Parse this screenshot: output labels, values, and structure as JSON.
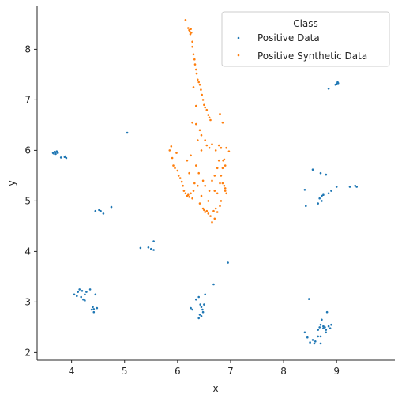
{
  "chart_data": {
    "type": "scatter",
    "title": "",
    "xlabel": "x",
    "ylabel": "y",
    "xlim": [
      3.35,
      10.1
    ],
    "ylim": [
      1.85,
      8.85
    ],
    "xticks": [
      4,
      5,
      6,
      7,
      8,
      9
    ],
    "yticks": [
      2,
      3,
      4,
      5,
      6,
      7,
      8
    ],
    "grid": false,
    "legend": {
      "title": "Class",
      "placement": "top-right"
    },
    "series": [
      {
        "name": "Positive Data",
        "color": "#1f77b4",
        "points": [
          [
            3.65,
            5.95
          ],
          [
            3.68,
            5.97
          ],
          [
            3.7,
            5.96
          ],
          [
            3.72,
            5.98
          ],
          [
            3.66,
            5.94
          ],
          [
            3.74,
            5.95
          ],
          [
            3.7,
            5.93
          ],
          [
            3.8,
            5.86
          ],
          [
            3.87,
            5.87
          ],
          [
            3.9,
            5.85
          ],
          [
            3.88,
            5.88
          ],
          [
            5.05,
            6.35
          ],
          [
            4.45,
            4.8
          ],
          [
            4.52,
            4.82
          ],
          [
            4.55,
            4.8
          ],
          [
            4.6,
            4.75
          ],
          [
            4.75,
            4.88
          ],
          [
            5.3,
            4.07
          ],
          [
            5.45,
            4.08
          ],
          [
            5.5,
            4.05
          ],
          [
            5.55,
            4.03
          ],
          [
            5.55,
            4.2
          ],
          [
            4.05,
            3.15
          ],
          [
            4.1,
            3.12
          ],
          [
            4.12,
            3.2
          ],
          [
            4.15,
            3.25
          ],
          [
            4.18,
            3.1
          ],
          [
            4.2,
            3.22
          ],
          [
            4.22,
            3.05
          ],
          [
            4.25,
            3.15
          ],
          [
            4.25,
            3.03
          ],
          [
            4.28,
            3.2
          ],
          [
            4.35,
            3.25
          ],
          [
            4.38,
            2.85
          ],
          [
            4.4,
            2.9
          ],
          [
            4.42,
            2.8
          ],
          [
            4.45,
            3.15
          ],
          [
            4.48,
            2.88
          ],
          [
            4.42,
            2.86
          ],
          [
            6.25,
            2.88
          ],
          [
            6.28,
            2.85
          ],
          [
            6.35,
            3.05
          ],
          [
            6.4,
            2.68
          ],
          [
            6.42,
            2.75
          ],
          [
            6.45,
            2.9
          ],
          [
            6.45,
            2.72
          ],
          [
            6.48,
            2.8
          ],
          [
            6.5,
            2.95
          ],
          [
            6.52,
            3.15
          ],
          [
            6.43,
            2.95
          ],
          [
            6.47,
            2.85
          ],
          [
            6.4,
            3.1
          ],
          [
            6.68,
            3.35
          ],
          [
            6.95,
            3.78
          ],
          [
            8.4,
            5.22
          ],
          [
            8.42,
            4.9
          ],
          [
            8.55,
            5.62
          ],
          [
            8.65,
            4.95
          ],
          [
            8.68,
            5.05
          ],
          [
            8.7,
            5.55
          ],
          [
            8.72,
            5.0
          ],
          [
            8.72,
            5.1
          ],
          [
            8.75,
            5.12
          ],
          [
            8.8,
            5.52
          ],
          [
            8.85,
            5.15
          ],
          [
            8.9,
            5.2
          ],
          [
            9.0,
            5.28
          ],
          [
            9.25,
            5.28
          ],
          [
            9.35,
            5.3
          ],
          [
            9.38,
            5.28
          ],
          [
            8.85,
            7.22
          ],
          [
            8.98,
            7.3
          ],
          [
            9.0,
            7.32
          ],
          [
            9.02,
            7.35
          ],
          [
            9.03,
            7.33
          ],
          [
            8.4,
            2.4
          ],
          [
            8.45,
            2.3
          ],
          [
            8.48,
            3.06
          ],
          [
            8.5,
            2.2
          ],
          [
            8.55,
            2.25
          ],
          [
            8.58,
            2.18
          ],
          [
            8.6,
            2.22
          ],
          [
            8.65,
            2.45
          ],
          [
            8.65,
            2.32
          ],
          [
            8.68,
            2.5
          ],
          [
            8.7,
            2.55
          ],
          [
            8.7,
            2.18
          ],
          [
            8.72,
            2.65
          ],
          [
            8.75,
            2.48
          ],
          [
            8.78,
            2.5
          ],
          [
            8.8,
            2.45
          ],
          [
            8.8,
            2.4
          ],
          [
            8.82,
            2.8
          ],
          [
            8.85,
            2.52
          ],
          [
            8.88,
            2.48
          ],
          [
            8.9,
            2.55
          ],
          [
            8.7,
            2.32
          ],
          [
            8.75,
            2.52
          ]
        ]
      },
      {
        "name": "Positive Synthetic Data",
        "color": "#ff7f0e",
        "points": [
          [
            6.15,
            8.58
          ],
          [
            6.2,
            8.42
          ],
          [
            6.22,
            8.38
          ],
          [
            6.23,
            8.35
          ],
          [
            6.24,
            8.3
          ],
          [
            6.25,
            8.4
          ],
          [
            6.26,
            8.33
          ],
          [
            6.28,
            8.15
          ],
          [
            6.28,
            8.05
          ],
          [
            6.3,
            7.9
          ],
          [
            6.32,
            7.8
          ],
          [
            6.33,
            7.7
          ],
          [
            6.35,
            7.6
          ],
          [
            6.36,
            7.52
          ],
          [
            6.38,
            7.4
          ],
          [
            6.4,
            7.35
          ],
          [
            6.42,
            7.3
          ],
          [
            6.44,
            7.2
          ],
          [
            6.46,
            7.1
          ],
          [
            6.48,
            7.0
          ],
          [
            6.5,
            6.9
          ],
          [
            6.52,
            6.85
          ],
          [
            6.55,
            6.8
          ],
          [
            6.58,
            6.7
          ],
          [
            6.6,
            6.65
          ],
          [
            6.62,
            6.6
          ],
          [
            6.3,
            7.25
          ],
          [
            6.35,
            6.88
          ],
          [
            6.28,
            6.55
          ],
          [
            6.35,
            6.52
          ],
          [
            6.42,
            6.4
          ],
          [
            6.45,
            6.3
          ],
          [
            6.52,
            6.2
          ],
          [
            6.55,
            6.1
          ],
          [
            6.6,
            6.05
          ],
          [
            6.65,
            6.12
          ],
          [
            6.72,
            6.0
          ],
          [
            6.78,
            6.1
          ],
          [
            6.8,
            6.72
          ],
          [
            6.85,
            6.55
          ],
          [
            6.38,
            6.2
          ],
          [
            6.45,
            6.0
          ],
          [
            5.85,
            6.0
          ],
          [
            5.88,
            6.08
          ],
          [
            5.9,
            5.85
          ],
          [
            5.92,
            5.7
          ],
          [
            5.95,
            5.65
          ],
          [
            5.98,
            5.95
          ],
          [
            6.0,
            5.6
          ],
          [
            6.02,
            5.5
          ],
          [
            6.05,
            5.45
          ],
          [
            6.08,
            5.38
          ],
          [
            6.1,
            5.3
          ],
          [
            6.12,
            5.2
          ],
          [
            6.15,
            5.15
          ],
          [
            6.18,
            5.1
          ],
          [
            6.2,
            5.12
          ],
          [
            6.22,
            5.08
          ],
          [
            6.25,
            5.15
          ],
          [
            6.28,
            5.05
          ],
          [
            6.3,
            5.2
          ],
          [
            6.32,
            5.35
          ],
          [
            6.22,
            5.55
          ],
          [
            6.18,
            5.8
          ],
          [
            6.25,
            5.9
          ],
          [
            6.35,
            5.7
          ],
          [
            6.4,
            5.55
          ],
          [
            6.48,
            5.4
          ],
          [
            6.52,
            5.3
          ],
          [
            6.45,
            5.1
          ],
          [
            6.48,
            4.85
          ],
          [
            6.5,
            4.82
          ],
          [
            6.52,
            4.78
          ],
          [
            6.55,
            4.8
          ],
          [
            6.58,
            4.75
          ],
          [
            6.62,
            4.7
          ],
          [
            6.65,
            4.58
          ],
          [
            6.68,
            4.8
          ],
          [
            6.7,
            4.65
          ],
          [
            6.72,
            4.85
          ],
          [
            6.75,
            4.78
          ],
          [
            6.8,
            4.9
          ],
          [
            6.82,
            5.0
          ],
          [
            6.7,
            5.2
          ],
          [
            6.75,
            5.15
          ],
          [
            6.8,
            5.35
          ],
          [
            6.82,
            5.5
          ],
          [
            6.85,
            5.65
          ],
          [
            6.86,
            5.8
          ],
          [
            6.88,
            5.82
          ],
          [
            6.9,
            5.7
          ],
          [
            6.85,
            5.35
          ],
          [
            6.88,
            5.3
          ],
          [
            6.9,
            5.2
          ],
          [
            6.92,
            5.15
          ],
          [
            6.9,
            5.25
          ],
          [
            6.92,
            6.05
          ],
          [
            6.97,
            5.98
          ],
          [
            6.82,
            6.05
          ],
          [
            6.78,
            5.8
          ],
          [
            6.75,
            5.65
          ],
          [
            6.7,
            5.5
          ],
          [
            6.65,
            5.4
          ],
          [
            6.6,
            5.2
          ],
          [
            6.58,
            5.0
          ],
          [
            6.42,
            4.95
          ],
          [
            6.38,
            5.3
          ]
        ]
      }
    ]
  }
}
